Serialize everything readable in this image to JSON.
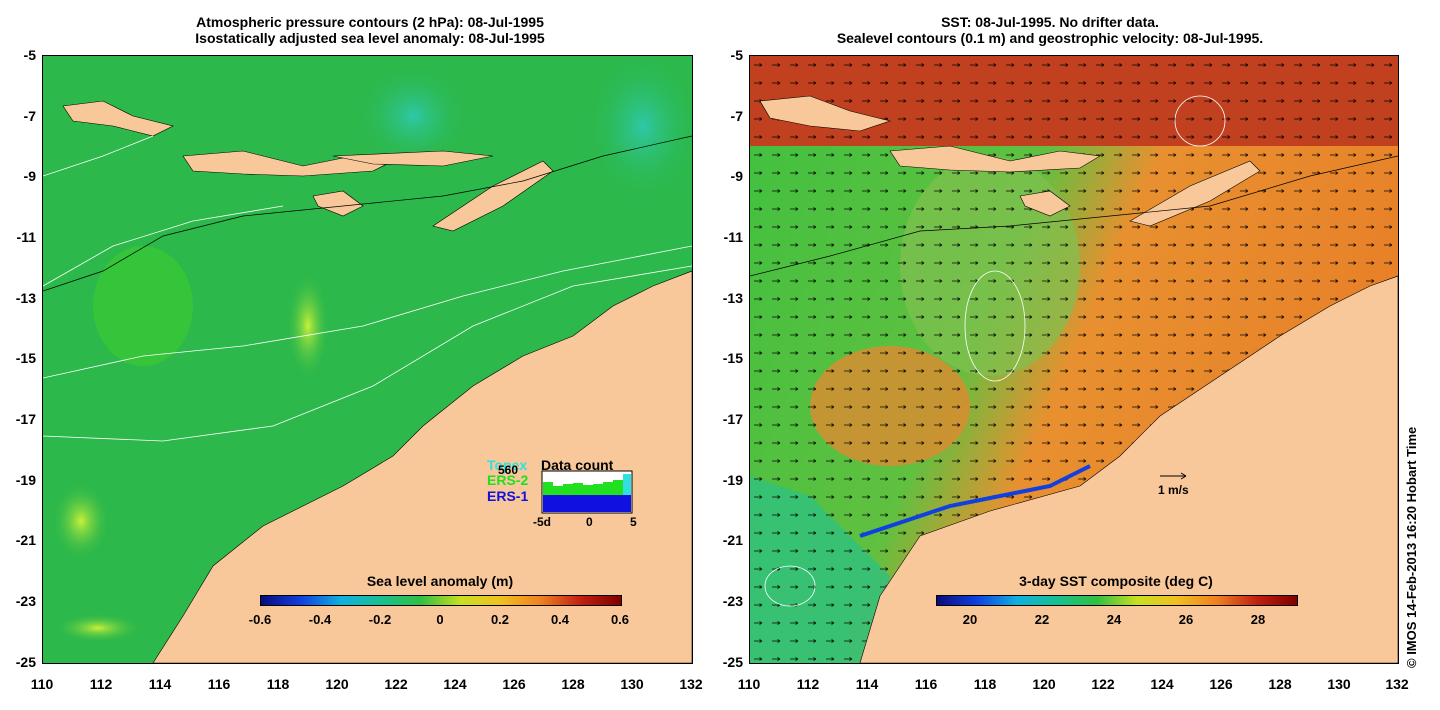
{
  "left": {
    "title_line1": "Atmospheric pressure contours (2 hPa): 08-Jul-1995",
    "title_line2": "Isostatically adjusted sea level anomaly: 08-Jul-1995",
    "colorbar_title": "Sea level anomaly (m)",
    "colorbar_ticks": [
      "-0.6",
      "-0.4",
      "-0.2",
      "0",
      "0.2",
      "0.4",
      "0.6"
    ],
    "legend": {
      "topex": "Topex",
      "count": "560",
      "ers2": "ERS-2",
      "ers1": "ERS-1",
      "title": "Data count",
      "axis": [
        "-5d",
        "0",
        "5"
      ],
      "colors": {
        "topex": "#30e0e0",
        "ers2": "#20e020",
        "ers1": "#1010e0"
      }
    }
  },
  "right": {
    "title_line1": "SST: 08-Jul-1995. No drifter data.",
    "title_line2": "Sealevel contours (0.1 m) and geostrophic velocity: 08-Jul-1995.",
    "colorbar_title": "3-day SST composite (deg C)",
    "colorbar_ticks": [
      "20",
      "22",
      "24",
      "26",
      "28"
    ],
    "velocity_label": "1 m/s"
  },
  "y_ticks": [
    "-5",
    "-7",
    "-9",
    "-11",
    "-13",
    "-15",
    "-17",
    "-19",
    "-21",
    "-23",
    "-25"
  ],
  "x_ticks": [
    "110",
    "112",
    "114",
    "116",
    "118",
    "120",
    "122",
    "124",
    "126",
    "128",
    "130",
    "132"
  ],
  "copyright": "© IMOS 14-Feb-2013 16:20 Hobart Time",
  "colors": {
    "land": "#f9c89a",
    "ocean_left": "#2cb84a",
    "sst_warm": "#e88a2a"
  }
}
